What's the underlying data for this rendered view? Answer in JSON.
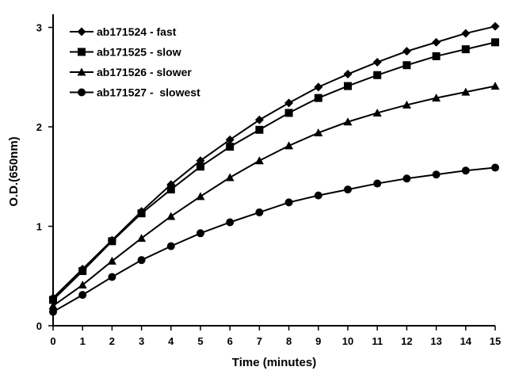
{
  "chart_data": {
    "type": "line",
    "title": "",
    "xlabel": "Time (minutes)",
    "ylabel": "O.D.(650nm)",
    "x": [
      0,
      1,
      2,
      3,
      4,
      5,
      6,
      7,
      8,
      9,
      10,
      11,
      12,
      13,
      14,
      15
    ],
    "xlim": [
      0,
      15
    ],
    "ylim": [
      0,
      3.1
    ],
    "x_ticks": [
      "0",
      "1",
      "2",
      "3",
      "4",
      "5",
      "6",
      "7",
      "8",
      "9",
      "10",
      "11",
      "12",
      "13",
      "14",
      "15"
    ],
    "y_ticks": [
      "0",
      "1",
      "2",
      "3"
    ],
    "grid": false,
    "legend_position": "top-left",
    "series": [
      {
        "name": "ab171524 - fast",
        "marker": "diamond",
        "color": "#000000",
        "values": [
          0.28,
          0.57,
          0.86,
          1.15,
          1.42,
          1.66,
          1.87,
          2.07,
          2.24,
          2.4,
          2.53,
          2.65,
          2.76,
          2.85,
          2.94,
          3.01
        ]
      },
      {
        "name": "ab171525 - slow",
        "marker": "square",
        "color": "#000000",
        "values": [
          0.26,
          0.55,
          0.85,
          1.13,
          1.37,
          1.6,
          1.8,
          1.97,
          2.14,
          2.29,
          2.41,
          2.52,
          2.62,
          2.71,
          2.78,
          2.85
        ]
      },
      {
        "name": "ab171526 - slower",
        "marker": "triangle",
        "color": "#000000",
        "values": [
          0.2,
          0.41,
          0.65,
          0.88,
          1.1,
          1.3,
          1.49,
          1.66,
          1.81,
          1.94,
          2.05,
          2.14,
          2.22,
          2.29,
          2.35,
          2.41
        ]
      },
      {
        "name": "ab171527 -  slowest",
        "marker": "circle",
        "color": "#000000",
        "values": [
          0.14,
          0.31,
          0.49,
          0.66,
          0.8,
          0.93,
          1.04,
          1.14,
          1.24,
          1.31,
          1.37,
          1.43,
          1.48,
          1.52,
          1.56,
          1.59
        ]
      }
    ]
  }
}
